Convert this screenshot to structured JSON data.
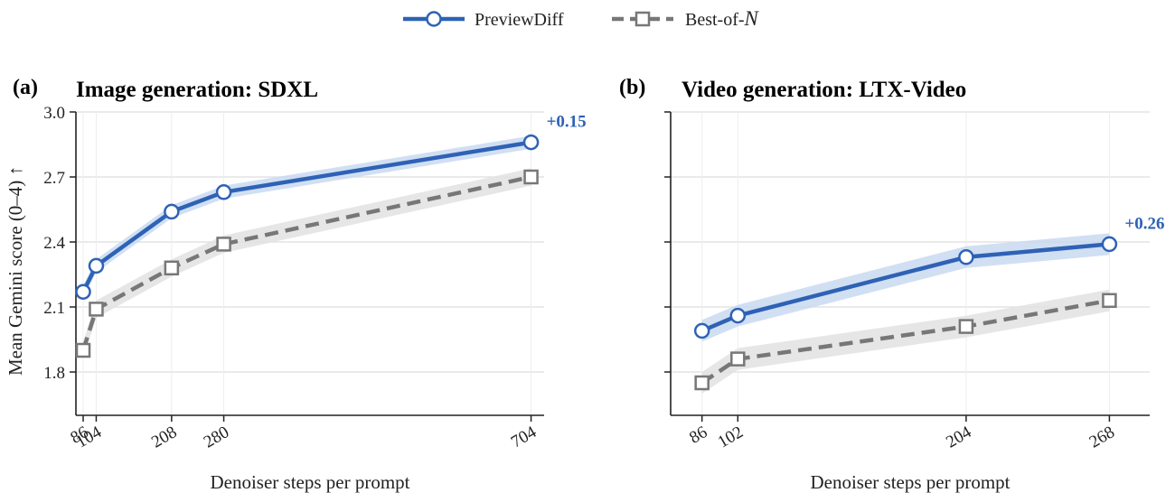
{
  "legend": {
    "entries": [
      {
        "label": "PreviewDiff",
        "marker": "circle",
        "line": "solid"
      },
      {
        "label_prefix": "Best-of-",
        "label_italic": "N",
        "marker": "square",
        "line": "dashed"
      }
    ],
    "placement": "top-center"
  },
  "colors": {
    "previewdiff": "#2E62B5",
    "previewdiff_band": "#C9D9F1",
    "bestofn": "#777777",
    "bestofn_band": "#E2E2E2",
    "grid": "#DDDDDD",
    "annotation": "#2E62B5"
  },
  "chart_data": [
    {
      "type": "line",
      "panel": "(a)",
      "title": "Image generation: SDXL",
      "xlabel": "Denoiser steps per prompt",
      "ylabel": "Mean Gemini score (0–4) ↑",
      "ylim": [
        1.6,
        3.0
      ],
      "yticks": [
        1.8,
        2.1,
        2.4,
        2.7,
        3.0
      ],
      "ytick_labels": [
        "1.8",
        "2.1",
        "2.4",
        "2.7",
        "3.0"
      ],
      "xlim": [
        76,
        722
      ],
      "x": [
        86,
        104,
        208,
        280,
        704
      ],
      "xtick_labels": [
        "86",
        "104",
        "208",
        "280",
        "704"
      ],
      "grid": "horizontal",
      "series": [
        {
          "name": "PreviewDiff",
          "values": [
            2.17,
            2.29,
            2.54,
            2.63,
            2.86
          ],
          "band": 0.03
        },
        {
          "name": "Best-of-N",
          "values": [
            1.9,
            2.09,
            2.28,
            2.39,
            2.7
          ],
          "band": 0.04
        }
      ],
      "annotation": {
        "text": "+0.15",
        "series": "PreviewDiff",
        "at_x": 704
      }
    },
    {
      "type": "line",
      "panel": "(b)",
      "title": "Video generation: LTX-Video",
      "xlabel": "Denoiser steps per prompt",
      "ylabel": "",
      "ylim": [
        1.6,
        3.0
      ],
      "yticks": [
        1.8,
        2.1,
        2.4,
        2.7,
        3.0
      ],
      "ytick_labels": [
        "",
        "",
        "",
        "",
        ""
      ],
      "xlim": [
        72,
        286
      ],
      "x": [
        86,
        102,
        204,
        268
      ],
      "xtick_labels": [
        "86",
        "102",
        "204",
        "268"
      ],
      "grid": "horizontal",
      "series": [
        {
          "name": "PreviewDiff",
          "values": [
            1.99,
            2.06,
            2.33,
            2.39
          ],
          "band": 0.05
        },
        {
          "name": "Best-of-N",
          "values": [
            1.75,
            1.86,
            2.01,
            2.13
          ],
          "band": 0.05
        }
      ],
      "annotation": {
        "text": "+0.26",
        "series": "PreviewDiff",
        "at_x": 268
      }
    }
  ]
}
